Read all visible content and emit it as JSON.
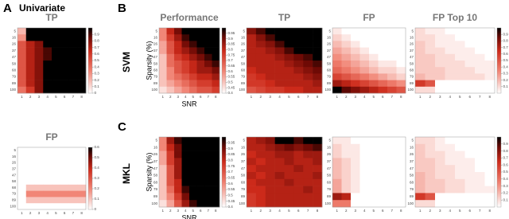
{
  "panels": [
    {
      "letter": "A",
      "title": "Univariate"
    },
    {
      "letter": "B"
    },
    {
      "letter": "C"
    }
  ],
  "rows": [
    "SVM",
    "MKL"
  ],
  "colorscale": [
    [
      0,
      "#ffffff"
    ],
    [
      0.35,
      "#f08070"
    ],
    [
      0.65,
      "#cc2a1a"
    ],
    [
      0.85,
      "#6e0a05"
    ],
    [
      1,
      "#000000"
    ]
  ],
  "chart_data": [
    {
      "type": "heatmap",
      "title": "TP",
      "x": [
        1,
        2,
        3,
        4,
        5,
        6,
        7,
        8
      ],
      "y": [
        5,
        16,
        26,
        37,
        47,
        58,
        68,
        79,
        89,
        100
      ],
      "zlim": [
        0,
        1
      ],
      "colorbar": true,
      "zticks": [
        0,
        0.1,
        0.2,
        0.3,
        0.4,
        0.5,
        0.6,
        0.7,
        0.8,
        0.9
      ],
      "z": [
        [
          0.2,
          1,
          1,
          1,
          1,
          1,
          1,
          1
        ],
        [
          0.3,
          1,
          1,
          1,
          1,
          1,
          1,
          1
        ],
        [
          0.5,
          0.7,
          0.8,
          1,
          1,
          1,
          1,
          1
        ],
        [
          0.5,
          0.7,
          0.8,
          0.9,
          1,
          1,
          1,
          1
        ],
        [
          0.5,
          0.7,
          0.8,
          0.9,
          1,
          1,
          1,
          1
        ],
        [
          0.5,
          0.7,
          0.8,
          1,
          1,
          1,
          1,
          1
        ],
        [
          0.5,
          0.7,
          0.8,
          1,
          1,
          1,
          1,
          1
        ],
        [
          0.5,
          0.7,
          0.8,
          1,
          1,
          1,
          1,
          1
        ],
        [
          0.5,
          0.7,
          0.8,
          1,
          1,
          1,
          1,
          1
        ],
        [
          0.4,
          0.6,
          0.8,
          1,
          1,
          1,
          1,
          1
        ]
      ]
    },
    {
      "type": "heatmap",
      "title": "FP",
      "x": [
        1,
        2,
        3,
        4,
        5,
        6,
        7,
        8
      ],
      "y": [
        5,
        16,
        26,
        37,
        47,
        58,
        68,
        79,
        89,
        100
      ],
      "zlim": [
        0,
        0.6
      ],
      "colorbar": true,
      "zticks": [
        0,
        0.1,
        0.2,
        0.3,
        0.4,
        0.5,
        0.6
      ],
      "z": [
        [
          0,
          0,
          0,
          0,
          0,
          0,
          0,
          0
        ],
        [
          0,
          0,
          0,
          0,
          0,
          0,
          0,
          0
        ],
        [
          0,
          0,
          0,
          0,
          0,
          0,
          0,
          0
        ],
        [
          0,
          0,
          0,
          0,
          0,
          0,
          0,
          0
        ],
        [
          0,
          0,
          0,
          0,
          0,
          0,
          0,
          0
        ],
        [
          0,
          0,
          0,
          0,
          0,
          0,
          0,
          0
        ],
        [
          0,
          0.1,
          0.1,
          0.1,
          0.1,
          0.1,
          0.1,
          0.1
        ],
        [
          0,
          0.2,
          0.2,
          0.2,
          0.2,
          0.2,
          0.2,
          0.2
        ],
        [
          0,
          0.1,
          0.1,
          0.1,
          0.1,
          0.1,
          0.1,
          0.1
        ],
        [
          0,
          0,
          0,
          0,
          0,
          0,
          0,
          0
        ]
      ]
    },
    {
      "type": "heatmap",
      "title": "Performance",
      "x_label": "SNR",
      "y_label": "Sparsity (%)",
      "x": [
        1,
        2,
        3,
        4,
        5,
        6,
        7,
        8
      ],
      "y": [
        5,
        16,
        26,
        37,
        47,
        58,
        68,
        79,
        89,
        100
      ],
      "zlim": [
        0.4,
        1
      ],
      "colorbar": true,
      "zticks": [
        0.4,
        0.45,
        0.5,
        0.55,
        0.6,
        0.65,
        0.7,
        0.75,
        0.8,
        0.85,
        0.9,
        0.95
      ],
      "z": [
        [
          0.6,
          0.8,
          0.9,
          1,
          1,
          1,
          1,
          1
        ],
        [
          0.6,
          0.75,
          0.85,
          0.95,
          1,
          1,
          1,
          1
        ],
        [
          0.55,
          0.7,
          0.8,
          0.9,
          0.95,
          1,
          1,
          1
        ],
        [
          0.55,
          0.7,
          0.8,
          0.85,
          0.9,
          0.95,
          1,
          1
        ],
        [
          0.5,
          0.65,
          0.75,
          0.8,
          0.85,
          0.9,
          0.95,
          1
        ],
        [
          0.5,
          0.65,
          0.7,
          0.75,
          0.8,
          0.85,
          0.9,
          0.95
        ],
        [
          0.5,
          0.6,
          0.7,
          0.75,
          0.8,
          0.85,
          0.85,
          0.9
        ],
        [
          0.5,
          0.6,
          0.65,
          0.7,
          0.75,
          0.8,
          0.8,
          0.85
        ],
        [
          0.5,
          0.55,
          0.6,
          0.65,
          0.7,
          0.75,
          0.75,
          0.8
        ],
        [
          0.45,
          0.5,
          0.55,
          0.6,
          0.65,
          0.7,
          0.7,
          0.75
        ]
      ]
    },
    {
      "type": "heatmap",
      "title": "TP",
      "x": [
        1,
        2,
        3,
        4,
        5,
        6,
        7,
        8
      ],
      "y": [
        5,
        16,
        26,
        37,
        47,
        58,
        68,
        79,
        89,
        100
      ],
      "zlim": [
        0,
        1
      ],
      "colorbar": false,
      "z": [
        [
          0.8,
          0.9,
          1,
          1,
          1,
          1,
          1,
          1
        ],
        [
          0.7,
          0.8,
          0.9,
          1,
          1,
          1,
          1,
          1
        ],
        [
          0.7,
          0.75,
          0.8,
          0.9,
          1,
          1,
          1,
          1
        ],
        [
          0.7,
          0.7,
          0.75,
          0.8,
          0.9,
          1,
          1,
          1
        ],
        [
          0.7,
          0.7,
          0.7,
          0.75,
          0.8,
          0.85,
          0.9,
          1
        ],
        [
          0.7,
          0.7,
          0.7,
          0.7,
          0.75,
          0.8,
          0.85,
          0.9
        ],
        [
          0.65,
          0.7,
          0.7,
          0.7,
          0.7,
          0.75,
          0.8,
          0.85
        ],
        [
          0.6,
          0.65,
          0.7,
          0.7,
          0.7,
          0.7,
          0.75,
          0.8
        ],
        [
          0.6,
          0.6,
          0.65,
          0.7,
          0.7,
          0.7,
          0.7,
          0.75
        ],
        [
          0.5,
          0.55,
          0.6,
          0.6,
          0.65,
          0.65,
          0.7,
          0.7
        ]
      ]
    },
    {
      "type": "heatmap",
      "title": "FP",
      "x": [
        1,
        2,
        3,
        4,
        5,
        6,
        7,
        8
      ],
      "y": [
        5,
        16,
        26,
        37,
        47,
        58,
        68,
        79,
        89,
        100
      ],
      "zlim": [
        0,
        0.8
      ],
      "colorbar": false,
      "z": [
        [
          0.05,
          0,
          0,
          0,
          0,
          0,
          0,
          0
        ],
        [
          0.1,
          0.05,
          0,
          0,
          0,
          0,
          0,
          0
        ],
        [
          0.15,
          0.1,
          0.05,
          0,
          0,
          0,
          0,
          0
        ],
        [
          0.2,
          0.15,
          0.1,
          0.05,
          0,
          0,
          0,
          0
        ],
        [
          0.25,
          0.2,
          0.15,
          0.1,
          0.05,
          0,
          0,
          0
        ],
        [
          0.3,
          0.25,
          0.2,
          0.15,
          0.1,
          0.05,
          0.05,
          0
        ],
        [
          0.35,
          0.3,
          0.25,
          0.2,
          0.15,
          0.1,
          0.1,
          0.05
        ],
        [
          0.45,
          0.4,
          0.35,
          0.3,
          0.25,
          0.2,
          0.15,
          0.1
        ],
        [
          0.6,
          0.55,
          0.5,
          0.45,
          0.4,
          0.35,
          0.3,
          0.25
        ],
        [
          0.8,
          0.7,
          0.65,
          0.6,
          0.55,
          0.5,
          0.45,
          0.4
        ]
      ]
    },
    {
      "type": "heatmap",
      "title": "FP Top 10",
      "x": [
        1,
        2,
        3,
        4,
        5,
        6,
        7,
        8
      ],
      "y": [
        5,
        16,
        26,
        37,
        47,
        58,
        68,
        79,
        89,
        100
      ],
      "zlim": [
        0,
        1
      ],
      "colorbar": true,
      "zticks": [
        0.1,
        0.2,
        0.3,
        0.4,
        0.5,
        0.6,
        0.7,
        0.8,
        0.9
      ],
      "z": [
        [
          0.1,
          0.05,
          0.05,
          0,
          0,
          0,
          0,
          0
        ],
        [
          0.1,
          0.1,
          0.05,
          0.05,
          0,
          0,
          0,
          0
        ],
        [
          0.15,
          0.1,
          0.05,
          0.05,
          0.05,
          0,
          0,
          0
        ],
        [
          0.15,
          0.1,
          0.1,
          0.05,
          0.05,
          0.05,
          0,
          0
        ],
        [
          0.15,
          0.15,
          0.1,
          0.1,
          0.05,
          0.05,
          0.05,
          0
        ],
        [
          0.15,
          0.15,
          0.1,
          0.1,
          0.1,
          0.05,
          0.05,
          0.05
        ],
        [
          0.15,
          0.15,
          0.15,
          0.1,
          0.1,
          0.1,
          0.05,
          0.05
        ],
        [
          0.2,
          0.15,
          0.15,
          0.1,
          0.1,
          0.1,
          0.1,
          0.05
        ],
        [
          0.6,
          0.5,
          0,
          0,
          0,
          0,
          0,
          0
        ],
        [
          0.1,
          0.1,
          0,
          0,
          0,
          0,
          0,
          0
        ]
      ]
    },
    {
      "type": "heatmap",
      "x_label": "SNR",
      "y_label": "Sparsity (%)",
      "x": [
        1,
        2,
        3,
        4,
        5,
        6,
        7,
        8
      ],
      "y": [
        5,
        16,
        26,
        37,
        47,
        58,
        68,
        79,
        89,
        100
      ],
      "zlim": [
        0.4,
        1
      ],
      "colorbar": true,
      "zticks": [
        0.4,
        0.45,
        0.5,
        0.55,
        0.6,
        0.65,
        0.7,
        0.75,
        0.8,
        0.85,
        0.9,
        0.95
      ],
      "z": [
        [
          0.6,
          0.85,
          0.95,
          1,
          1,
          1,
          1,
          1
        ],
        [
          0.6,
          0.8,
          0.9,
          1,
          1,
          1,
          1,
          1
        ],
        [
          0.55,
          0.75,
          0.9,
          1,
          1,
          1,
          1,
          1
        ],
        [
          0.55,
          0.75,
          0.85,
          1,
          1,
          1,
          1,
          1
        ],
        [
          0.5,
          0.7,
          0.85,
          1,
          1,
          1,
          1,
          1
        ],
        [
          0.5,
          0.7,
          0.85,
          1,
          1,
          1,
          1,
          1
        ],
        [
          0.5,
          0.7,
          0.8,
          1,
          1,
          1,
          1,
          1
        ],
        [
          0.5,
          0.65,
          0.8,
          0.95,
          1,
          1,
          1,
          1
        ],
        [
          0.5,
          0.6,
          0.75,
          0.9,
          1,
          1,
          1,
          1
        ],
        [
          0.45,
          0.55,
          0.7,
          0.85,
          0.95,
          1,
          1,
          1
        ]
      ]
    },
    {
      "type": "heatmap",
      "x": [
        1,
        2,
        3,
        4,
        5,
        6,
        7,
        8
      ],
      "y": [
        5,
        16,
        26,
        37,
        47,
        58,
        68,
        79,
        89,
        100
      ],
      "zlim": [
        0,
        1
      ],
      "colorbar": false,
      "z": [
        [
          0.7,
          0.75,
          0.8,
          1,
          1,
          0.9,
          1,
          1
        ],
        [
          0.7,
          0.7,
          0.75,
          0.8,
          0.85,
          0.8,
          0.85,
          0.9
        ],
        [
          0.65,
          0.7,
          0.7,
          0.75,
          0.75,
          0.7,
          0.75,
          0.75
        ],
        [
          0.7,
          0.65,
          0.7,
          0.7,
          0.75,
          0.7,
          0.7,
          0.75
        ],
        [
          0.65,
          0.7,
          0.7,
          0.7,
          0.7,
          0.75,
          0.7,
          0.7
        ],
        [
          0.7,
          0.65,
          0.7,
          0.75,
          0.7,
          0.7,
          0.7,
          0.75
        ],
        [
          0.65,
          0.7,
          0.7,
          0.7,
          0.75,
          0.7,
          0.7,
          0.7
        ],
        [
          0.65,
          0.65,
          0.7,
          0.7,
          0.7,
          0.7,
          0.75,
          0.7
        ],
        [
          0.6,
          0.65,
          0.7,
          0.7,
          0.7,
          0.7,
          0.7,
          0.7
        ],
        [
          0.6,
          0.65,
          0.7,
          0.7,
          0.7,
          0.7,
          0.7,
          0.7
        ]
      ]
    },
    {
      "type": "heatmap",
      "x": [
        1,
        2,
        3,
        4,
        5,
        6,
        7,
        8
      ],
      "y": [
        5,
        16,
        26,
        37,
        47,
        58,
        68,
        79,
        89,
        100
      ],
      "zlim": [
        0,
        0.8
      ],
      "colorbar": false,
      "z": [
        [
          0.05,
          0.05,
          0,
          0,
          0,
          0,
          0,
          0
        ],
        [
          0.1,
          0.05,
          0.05,
          0,
          0,
          0,
          0,
          0
        ],
        [
          0.1,
          0.05,
          0.05,
          0,
          0,
          0,
          0,
          0
        ],
        [
          0.15,
          0.1,
          0.05,
          0,
          0,
          0,
          0,
          0
        ],
        [
          0.15,
          0.1,
          0.05,
          0,
          0,
          0,
          0,
          0
        ],
        [
          0.15,
          0.1,
          0.05,
          0,
          0,
          0,
          0,
          0
        ],
        [
          0.2,
          0.1,
          0.05,
          0,
          0,
          0,
          0,
          0
        ],
        [
          0.2,
          0.1,
          0.05,
          0,
          0,
          0,
          0,
          0
        ],
        [
          0.6,
          0.55,
          0,
          0,
          0,
          0,
          0,
          0
        ],
        [
          0.3,
          0.3,
          0,
          0,
          0,
          0,
          0,
          0
        ]
      ]
    },
    {
      "type": "heatmap",
      "x": [
        1,
        2,
        3,
        4,
        5,
        6,
        7,
        8
      ],
      "y": [
        5,
        16,
        26,
        37,
        47,
        58,
        68,
        79,
        89,
        100
      ],
      "zlim": [
        0,
        1
      ],
      "colorbar": true,
      "zticks": [
        0.1,
        0.2,
        0.3,
        0.4,
        0.5,
        0.6,
        0.7,
        0.8,
        0.9
      ],
      "z": [
        [
          0.1,
          0.1,
          0.05,
          0,
          0,
          0,
          0,
          0
        ],
        [
          0.15,
          0.1,
          0.05,
          0.05,
          0,
          0,
          0,
          0
        ],
        [
          0.15,
          0.1,
          0.1,
          0.05,
          0.05,
          0,
          0,
          0
        ],
        [
          0.15,
          0.15,
          0.1,
          0.05,
          0.05,
          0.05,
          0,
          0
        ],
        [
          0.15,
          0.15,
          0.1,
          0.1,
          0.05,
          0.05,
          0,
          0
        ],
        [
          0.2,
          0.15,
          0.1,
          0.1,
          0.05,
          0.05,
          0.05,
          0
        ],
        [
          0.2,
          0.15,
          0.15,
          0.1,
          0.1,
          0.05,
          0.05,
          0
        ],
        [
          0.2,
          0.15,
          0.15,
          0.1,
          0.1,
          0.05,
          0.05,
          0.05
        ],
        [
          0.6,
          0.5,
          0,
          0,
          0,
          0,
          0,
          0
        ],
        [
          0.1,
          0.1,
          0,
          0,
          0,
          0,
          0,
          0
        ]
      ]
    }
  ]
}
